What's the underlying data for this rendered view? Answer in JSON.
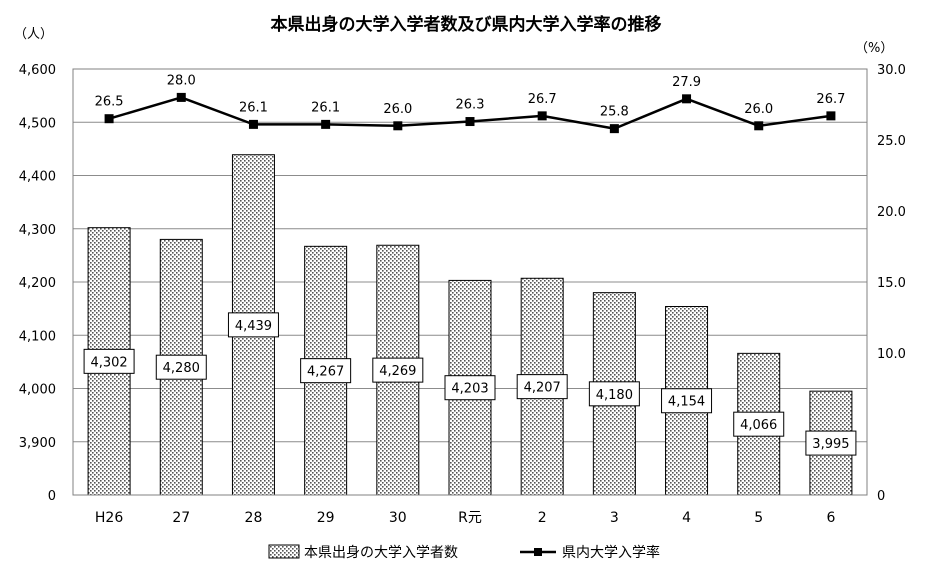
{
  "chart_data": {
    "type": "bar+line",
    "title": "本県出身の大学入学者数及び県内大学入学率の推移",
    "left_unit": "（人）",
    "right_unit": "（%）",
    "categories": [
      "H26",
      "27",
      "28",
      "29",
      "30",
      "R元",
      "2",
      "3",
      "4",
      "5",
      "6"
    ],
    "left_axis": {
      "ticks": [
        "0",
        "3,900",
        "4,000",
        "4,100",
        "4,200",
        "4,300",
        "4,400",
        "4,500",
        "4,600"
      ],
      "tick_values": [
        3800,
        3900,
        4000,
        4100,
        4200,
        4300,
        4400,
        4500,
        4600
      ],
      "range": [
        3800,
        4600
      ],
      "note": "axis break: bottom tick labeled 0"
    },
    "right_axis": {
      "ticks": [
        "0",
        "10.0",
        "15.0",
        "20.0",
        "25.0",
        "30.0"
      ],
      "tick_values": [
        0,
        10,
        15,
        20,
        25,
        30
      ],
      "range": [
        0,
        30
      ]
    },
    "series": [
      {
        "name": "本県出身の大学入学者数",
        "kind": "bar",
        "axis": "left",
        "values": [
          4302,
          4280,
          4439,
          4267,
          4269,
          4203,
          4207,
          4180,
          4154,
          4066,
          3995
        ],
        "labels": [
          "4,302",
          "4,280",
          "4,439",
          "4,267",
          "4,269",
          "4,203",
          "4,207",
          "4,180",
          "4,154",
          "4,066",
          "3,995"
        ]
      },
      {
        "name": "県内大学入学率",
        "kind": "line",
        "axis": "right",
        "values": [
          26.5,
          28.0,
          26.1,
          26.1,
          26.0,
          26.3,
          26.7,
          25.8,
          27.9,
          26.0,
          26.7
        ],
        "labels": [
          "26.5",
          "28.0",
          "26.1",
          "26.1",
          "26.0",
          "26.3",
          "26.7",
          "25.8",
          "27.9",
          "26.0",
          "26.7"
        ]
      }
    ],
    "legend": [
      "本県出身の大学入学者数",
      "県内大学入学率"
    ],
    "legend_position": "bottom",
    "grid": true
  }
}
